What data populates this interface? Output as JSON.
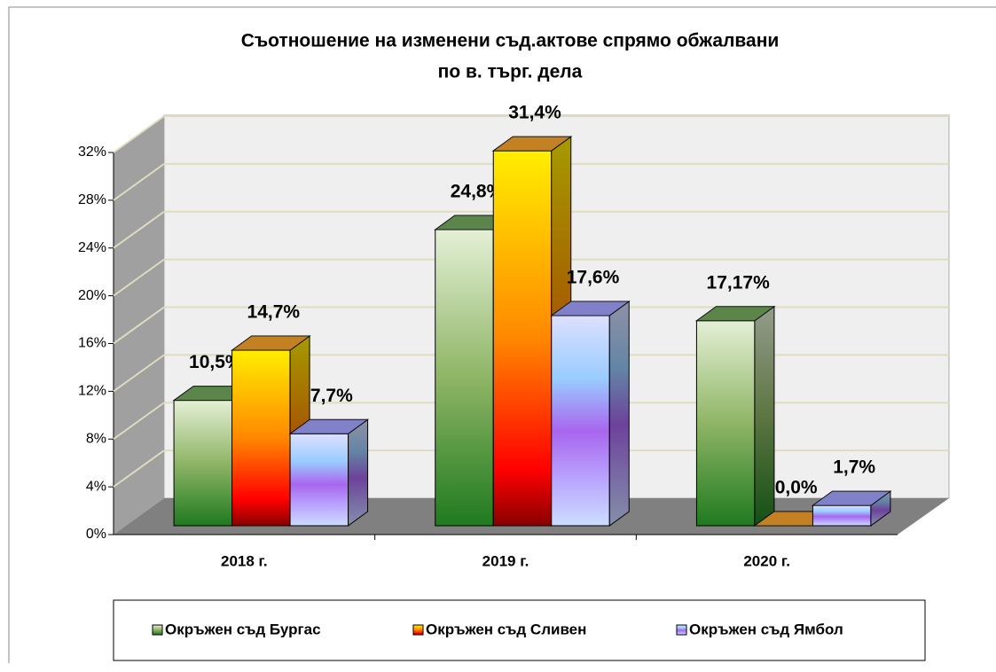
{
  "chart_data": {
    "type": "bar3d",
    "title": [
      "Съотношение на изменени съд.актове спрямо обжалвани",
      "по в. търг. дела"
    ],
    "categories": [
      "2018 г.",
      "2019 г.",
      "2020 г."
    ],
    "series": [
      {
        "name": "Окръжен съд Бургас",
        "color": "#5e9e3c",
        "values": [
          10.5,
          24.8,
          17.17
        ],
        "value_labels": [
          "10,5%",
          "24,8%",
          "17,17%"
        ]
      },
      {
        "name": "Окръжен съд Сливен",
        "color": "#ff9900",
        "values": [
          14.7,
          31.4,
          0.0
        ],
        "value_labels": [
          "14,7%",
          "31,4%",
          "0,0%"
        ]
      },
      {
        "name": "Окръжен съд Ямбол",
        "color": "#9999ff",
        "values": [
          7.7,
          17.6,
          1.7
        ],
        "value_labels": [
          "7,7%",
          "17,6%",
          "1,7%"
        ]
      }
    ],
    "ylim": [
      0,
      32
    ],
    "yticks": [
      {
        "value": 0,
        "label": "0%"
      },
      {
        "value": 4,
        "label": "4%"
      },
      {
        "value": 8,
        "label": "8%"
      },
      {
        "value": 12,
        "label": "12%"
      },
      {
        "value": 16,
        "label": "16%"
      },
      {
        "value": 20,
        "label": "20%"
      },
      {
        "value": 24,
        "label": "24%"
      },
      {
        "value": 28,
        "label": "28%"
      },
      {
        "value": 32,
        "label": "32%"
      }
    ],
    "grid": true,
    "legend": "bottom"
  }
}
